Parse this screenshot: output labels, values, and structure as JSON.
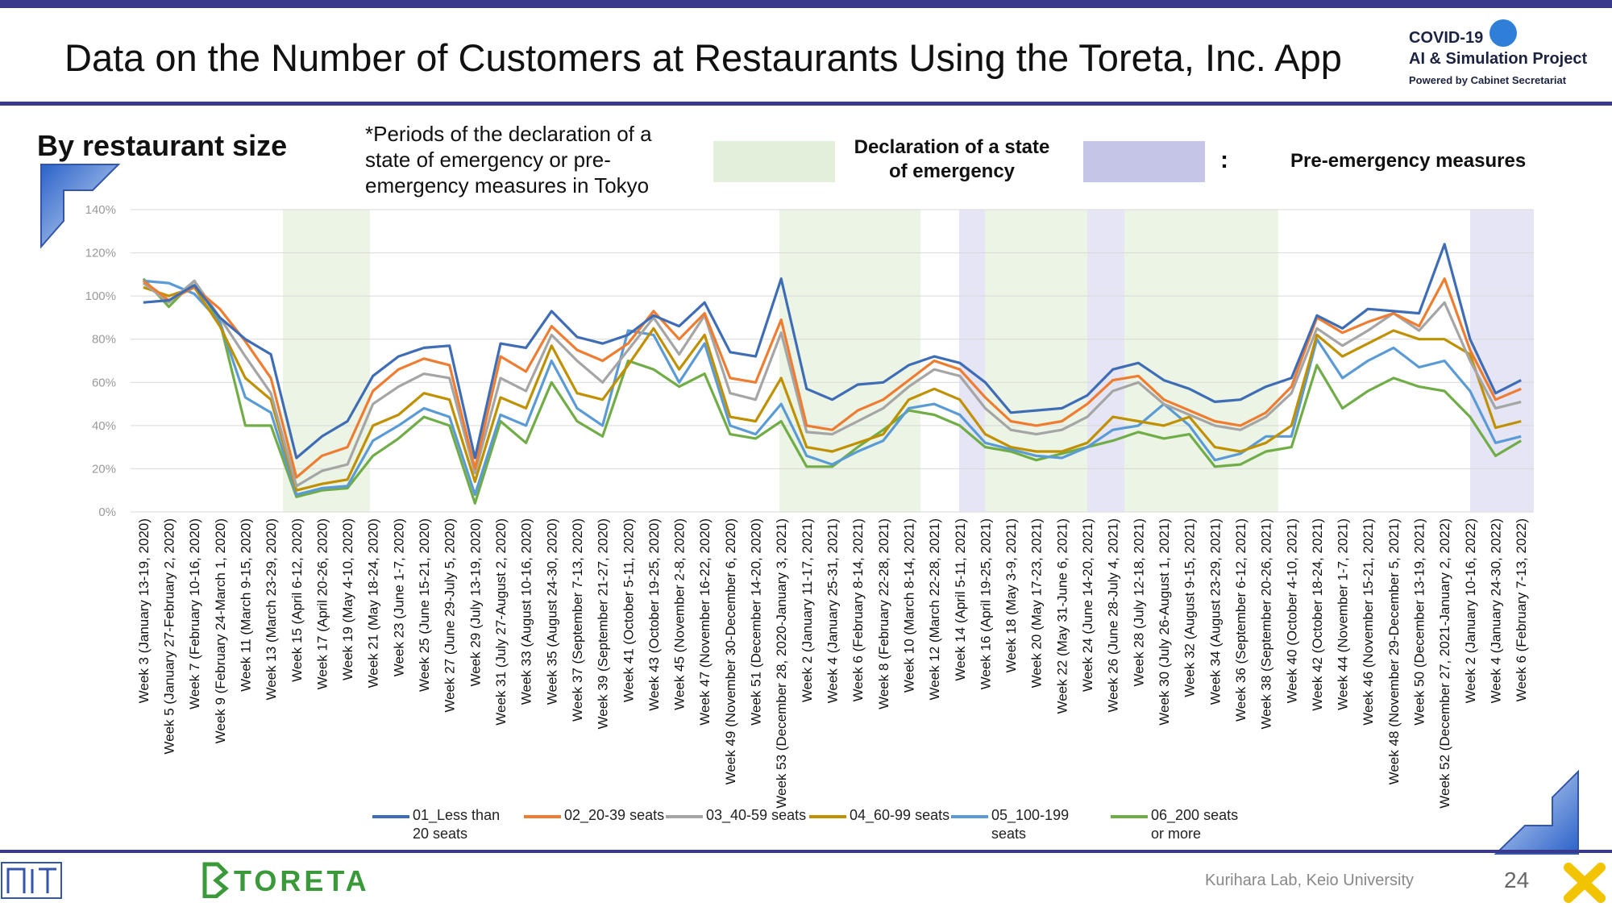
{
  "header": {
    "title": "Data on the Number of Customers at Restaurants Using the Toreta, Inc. App",
    "logo": {
      "line1": "COVID-19",
      "line2": "AI & Simulation Project",
      "line3": "Powered by Cabinet Secretariat"
    }
  },
  "section_title": "By restaurant size",
  "periods_legend": {
    "note": "*Periods of the declaration of a state of emergency or pre-emergency measures in Tokyo",
    "declaration": "Declaration of a state of emergency",
    "separator": ":",
    "pre_emergency": "Pre-emergency measures"
  },
  "chart_data": {
    "type": "line",
    "categories": [
      "Week 3 (January 13-19, 2020)",
      "Week 5 (January 27-February 2, 2020)",
      "Week 7 (February 10-16, 2020)",
      "Week 9 (February 24-March 1, 2020)",
      "Week 11 (March 9-15, 2020)",
      "Week 13 (March 23-29, 2020)",
      "Week 15 (April 6-12, 2020)",
      "Week 17 (April 20-26, 2020)",
      "Week 19 (May 4-10, 2020)",
      "Week 21 (May 18-24, 2020)",
      "Week 23 (June 1-7, 2020)",
      "Week 25 (June 15-21, 2020)",
      "Week 27 (June 29-July 5, 2020)",
      "Week 29 (July 13-19, 2020)",
      "Week 31 (July 27-August 2, 2020)",
      "Week 33 (August 10-16, 2020)",
      "Week 35 (August 24-30, 2020)",
      "Week 37 (September 7-13, 2020)",
      "Week 39 (September 21-27, 2020)",
      "Week 41 (October 5-11, 2020)",
      "Week 43 (October 19-25, 2020)",
      "Week 45 (November 2-8, 2020)",
      "Week 47 (November 16-22, 2020)",
      "Week 49 (November 30-December 6, 2020)",
      "Week 51 (December 14-20, 2020)",
      "Week 53 (December 28, 2020-January 3, 2021)",
      "Week 2 (January 11-17, 2021)",
      "Week 4 (January 25-31, 2021)",
      "Week 6 (February 8-14, 2021)",
      "Week 8 (February 22-28, 2021)",
      "Week 10 (March 8-14, 2021)",
      "Week 12 (March 22-28, 2021)",
      "Week 14 (April 5-11, 2021)",
      "Week 16 (April 19-25, 2021)",
      "Week 18 (May 3-9, 2021)",
      "Week 20 (May 17-23, 2021)",
      "Week 22 (May 31-June 6, 2021)",
      "Week 24 (June 14-20, 2021)",
      "Week 26 (June 28-July 4, 2021)",
      "Week 28 (July 12-18, 2021)",
      "Week 30 (July 26-August 1, 2021)",
      "Week 32 (August 9-15, 2021)",
      "Week 34 (August 23-29, 2021)",
      "Week 36 (September 6-12, 2021)",
      "Week 38 (September 20-26, 2021)",
      "Week 40 (October 4-10, 2021)",
      "Week 42 (October 18-24, 2021)",
      "Week 44 (November 1-7, 2021)",
      "Week 46 (November 15-21, 2021)",
      "Week 48 (November 29-December 5, 2021)",
      "Week 50 (December 13-19, 2021)",
      "Week 52 (December 27, 2021-January 2, 2022)",
      "Week 2 (January 10-16, 2022)",
      "Week 4 (January 24-30, 2022)",
      "Week 6 (February 7-13, 2022)"
    ],
    "series": [
      {
        "name": "01_Less than 20 seats",
        "color": "#3f6db5",
        "values": [
          97,
          98,
          105,
          90,
          80,
          73,
          25,
          35,
          42,
          63,
          72,
          76,
          77,
          25,
          78,
          76,
          93,
          81,
          78,
          82,
          91,
          86,
          97,
          74,
          72,
          108,
          57,
          52,
          59,
          60,
          68,
          72,
          69,
          60,
          46,
          47,
          48,
          54,
          66,
          69,
          61,
          57,
          51,
          52,
          58,
          62,
          91,
          85,
          94,
          93,
          92,
          124,
          80,
          55,
          61
        ]
      },
      {
        "name": "02_20-39 seats",
        "color": "#ee7d31",
        "values": [
          107,
          98,
          104,
          94,
          79,
          62,
          16,
          26,
          30,
          56,
          66,
          71,
          68,
          20,
          72,
          65,
          86,
          75,
          70,
          78,
          93,
          80,
          92,
          62,
          60,
          89,
          40,
          38,
          47,
          52,
          61,
          70,
          66,
          53,
          42,
          40,
          42,
          50,
          61,
          63,
          52,
          47,
          42,
          40,
          46,
          58,
          90,
          83,
          88,
          92,
          86,
          108,
          75,
          52,
          57
        ]
      },
      {
        "name": "03_40-59 seats",
        "color": "#a5a5a5",
        "values": [
          106,
          97,
          107,
          90,
          72,
          55,
          12,
          19,
          22,
          50,
          58,
          64,
          62,
          18,
          62,
          56,
          82,
          70,
          60,
          75,
          90,
          73,
          91,
          55,
          52,
          83,
          37,
          36,
          42,
          48,
          58,
          66,
          63,
          48,
          38,
          36,
          38,
          44,
          56,
          60,
          50,
          45,
          40,
          38,
          44,
          55,
          85,
          77,
          84,
          92,
          84,
          97,
          70,
          48,
          51
        ]
      },
      {
        "name": "04_60-99 seats",
        "color": "#bf9000",
        "values": [
          104,
          100,
          104,
          86,
          62,
          52,
          10,
          13,
          15,
          40,
          45,
          55,
          52,
          14,
          53,
          48,
          77,
          55,
          52,
          68,
          85,
          66,
          82,
          44,
          42,
          62,
          30,
          28,
          32,
          36,
          52,
          57,
          52,
          36,
          30,
          28,
          28,
          32,
          44,
          42,
          40,
          44,
          30,
          28,
          32,
          40,
          82,
          72,
          78,
          84,
          80,
          80,
          73,
          39,
          42
        ]
      },
      {
        "name": "05_100-199 seats",
        "color": "#5b9bd5",
        "values": [
          107,
          106,
          101,
          88,
          53,
          46,
          8,
          11,
          12,
          33,
          40,
          48,
          44,
          8,
          45,
          40,
          70,
          48,
          40,
          84,
          82,
          60,
          78,
          40,
          36,
          50,
          26,
          22,
          28,
          33,
          48,
          50,
          45,
          32,
          29,
          26,
          25,
          30,
          38,
          40,
          50,
          40,
          24,
          27,
          35,
          35,
          80,
          62,
          70,
          76,
          67,
          70,
          56,
          32,
          35
        ]
      },
      {
        "name": "06_200 seats or more",
        "color": "#70ad47",
        "values": [
          108,
          95,
          107,
          88,
          40,
          40,
          7,
          10,
          11,
          26,
          34,
          44,
          40,
          4,
          42,
          32,
          60,
          42,
          35,
          70,
          66,
          58,
          64,
          36,
          34,
          42,
          21,
          21,
          30,
          38,
          47,
          45,
          40,
          30,
          28,
          24,
          27,
          30,
          33,
          37,
          34,
          36,
          21,
          22,
          28,
          30,
          68,
          48,
          56,
          62,
          58,
          56,
          44,
          26,
          33
        ]
      }
    ],
    "ylim": [
      0,
      140
    ],
    "yticks": [
      {
        "value": 0,
        "label": "0%"
      },
      {
        "value": 20,
        "label": "20%"
      },
      {
        "value": 40,
        "label": "40%"
      },
      {
        "value": 60,
        "label": "60%"
      },
      {
        "value": 80,
        "label": "80%"
      },
      {
        "value": 100,
        "label": "100%"
      },
      {
        "value": 120,
        "label": "120%"
      },
      {
        "value": 140,
        "label": "140%"
      }
    ],
    "grid": true
  },
  "footer": {
    "brand": "TORETA",
    "lab": "Kurihara Lab, Keio University",
    "page_number": "24"
  }
}
